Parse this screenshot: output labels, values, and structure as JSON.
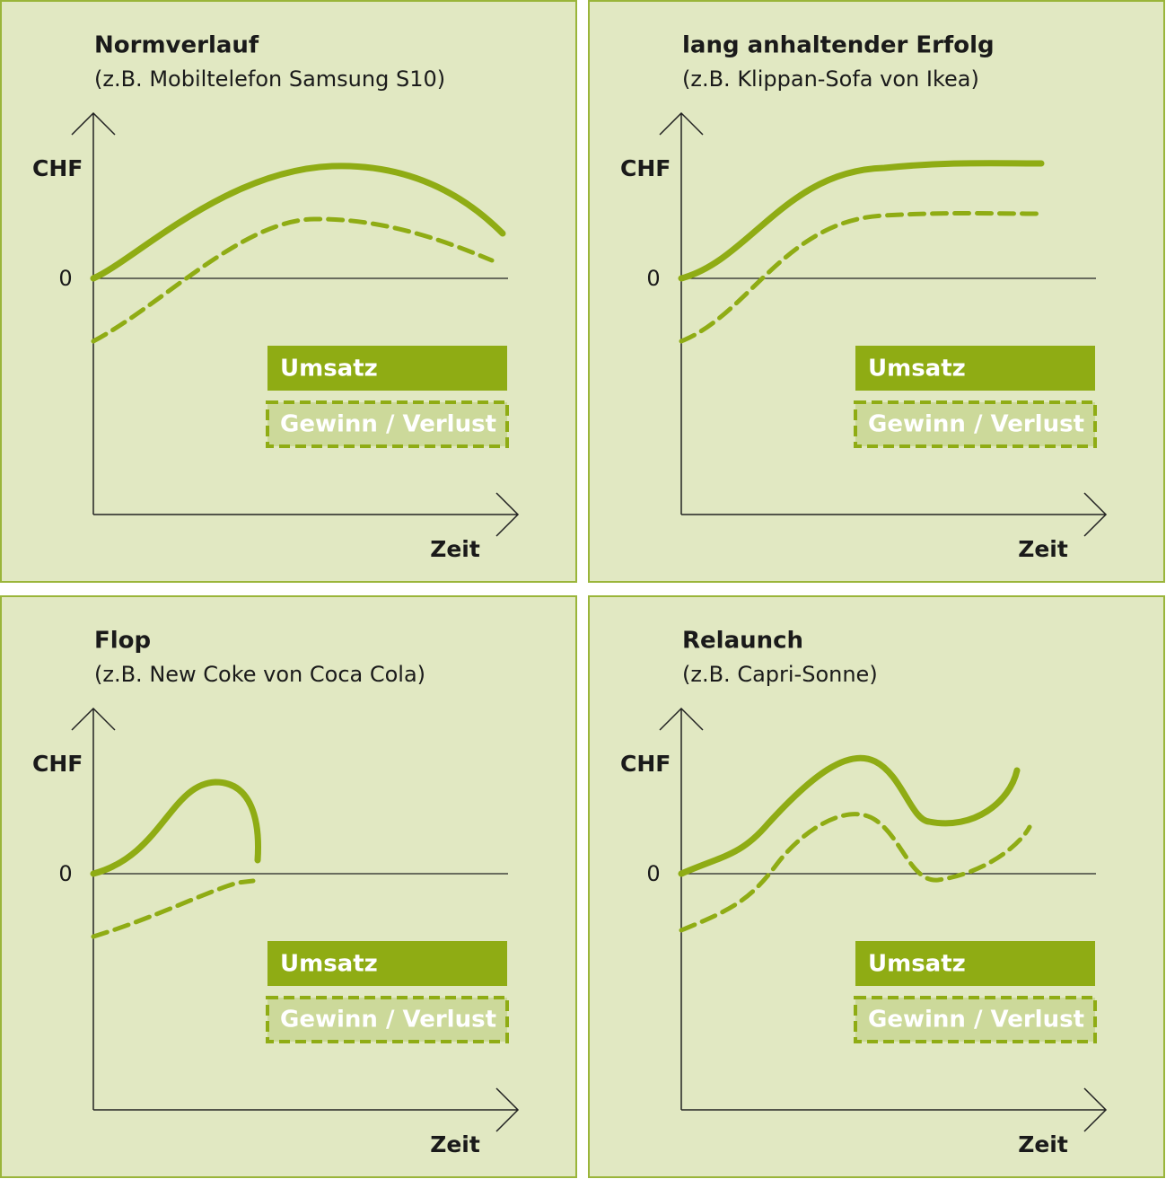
{
  "panels": [
    {
      "title": "Normverlauf",
      "subtitle": "(z.B. Mobiltelefon Samsung S10)",
      "y_label": "CHF",
      "zero_label": "0",
      "x_label": "Zeit",
      "legend": [
        "Umsatz",
        "Gewinn / Verlust"
      ]
    },
    {
      "title": "lang anhaltender Erfolg",
      "subtitle": "(z.B. Klippan-Sofa von Ikea)",
      "y_label": "CHF",
      "zero_label": "0",
      "x_label": "Zeit",
      "legend": [
        "Umsatz",
        "Gewinn / Verlust"
      ]
    },
    {
      "title": "Flop",
      "subtitle": "(z.B. New Coke von Coca Cola)",
      "y_label": "CHF",
      "zero_label": "0",
      "x_label": "Zeit",
      "legend": [
        "Umsatz",
        "Gewinn / Verlust"
      ]
    },
    {
      "title": "Relaunch",
      "subtitle": "(z.B. Capri-Sonne)",
      "y_label": "CHF",
      "zero_label": "0",
      "x_label": "Zeit",
      "legend": [
        "Umsatz",
        "Gewinn / Verlust"
      ]
    }
  ]
}
